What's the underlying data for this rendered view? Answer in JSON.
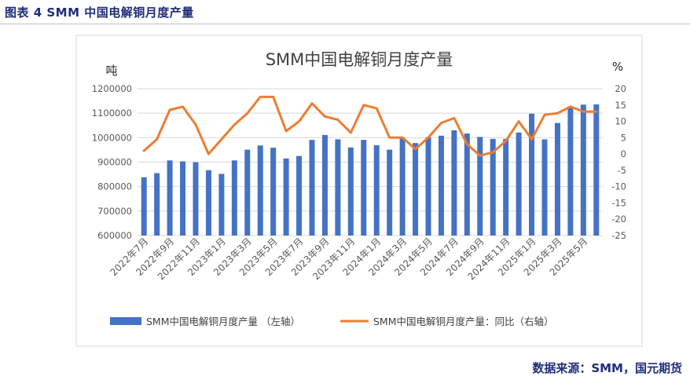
{
  "caption": "图表 4 SMM 中国电解铜月度产量",
  "source": "数据来源：SMM，国元期货",
  "chart_data": {
    "type": "bar",
    "title": "SMM中国电解铜月度产量",
    "ylabel_left": "吨",
    "ylabel_right": "%",
    "ylim_left": [
      600000,
      1200000
    ],
    "ylim_right": [
      -25,
      20
    ],
    "yticks_left": [
      "1200000",
      "1100000",
      "1000000",
      "900000",
      "800000",
      "700000",
      "600000"
    ],
    "yticks_right": [
      "20",
      "15",
      "10",
      "5",
      "0",
      "-5",
      "-10",
      "-15",
      "-20",
      "-25"
    ],
    "xtick_labels": [
      "2022年7月",
      "2022年9月",
      "2022年11月",
      "2023年1月",
      "2023年3月",
      "2023年5月",
      "2023年7月",
      "2023年9月",
      "2023年11月",
      "2024年1月",
      "2024年3月",
      "2024年5月",
      "2024年7月",
      "2024年9月",
      "2024年11月",
      "2025年1月",
      "2025年3月",
      "2025年5月"
    ],
    "categories": [
      "2022年7月",
      "2022年8月",
      "2022年9月",
      "2022年10月",
      "2022年11月",
      "2022年12月",
      "2023年1月",
      "2023年2月",
      "2023年3月",
      "2023年4月",
      "2023年5月",
      "2023年6月",
      "2023年7月",
      "2023年8月",
      "2023年9月",
      "2023年10月",
      "2023年11月",
      "2023年12月",
      "2024年1月",
      "2024年2月",
      "2024年3月",
      "2024年4月",
      "2024年5月",
      "2024年6月",
      "2024年7月",
      "2024年8月",
      "2024年9月",
      "2024年10月",
      "2024年11月",
      "2024年12月",
      "2025年1月",
      "2025年2月",
      "2025年3月",
      "2025年4月",
      "2025年5月",
      "2025年6月"
    ],
    "series": [
      {
        "name": "SMM中国电解铜月度产量 （左轴）",
        "axis": "left",
        "type": "bar",
        "color": "#4472c4",
        "values": [
          838000,
          855000,
          907000,
          903000,
          900000,
          867000,
          852000,
          907000,
          951000,
          968000,
          959000,
          915000,
          925000,
          991000,
          1011000,
          993000,
          960000,
          991000,
          969000,
          951000,
          999000,
          978000,
          1002000,
          1008000,
          1030000,
          1017000,
          1003000,
          995000,
          995000,
          1021000,
          1098000,
          993000,
          1060000,
          1124000,
          1135000,
          1136000
        ]
      },
      {
        "name": "SMM中国电解铜月度产量：同比（右轴）",
        "axis": "right",
        "type": "line",
        "color": "#ed7d31",
        "values": [
          1,
          4.5,
          13.5,
          14.5,
          9,
          0,
          4.5,
          9,
          12.5,
          17.5,
          17.5,
          7,
          10,
          15.5,
          11.5,
          10.5,
          6.5,
          15,
          14,
          5,
          5,
          1.5,
          5,
          9.5,
          11,
          3,
          -0.5,
          0.5,
          4,
          10,
          4.5,
          12,
          12.5,
          14.5,
          13,
          13
        ]
      }
    ],
    "grid": true,
    "legend_position": "bottom"
  }
}
